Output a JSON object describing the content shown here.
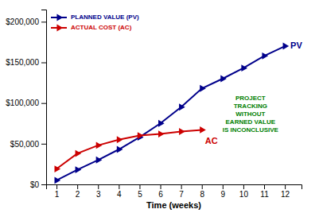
{
  "chart_data": {
    "type": "line",
    "xlabel": "Time (weeks)",
    "x": [
      1,
      2,
      3,
      4,
      5,
      6,
      7,
      8,
      9,
      10,
      11,
      12
    ],
    "series": [
      {
        "name": "PLANNED VALUE (PV)",
        "color": "#00008B",
        "marker": "triangle-right",
        "values": [
          5000,
          18000,
          30000,
          43000,
          58000,
          75000,
          95000,
          118000,
          130000,
          143000,
          158000,
          170000
        ]
      },
      {
        "name": "ACTUAL COST (AC)",
        "color": "#CC0000",
        "marker": "triangle-right",
        "values": [
          19000,
          38000,
          48000,
          55000,
          60000,
          62000,
          65000,
          67000,
          null,
          null,
          null,
          null
        ]
      }
    ],
    "xlim": [
      0.5,
      12.8
    ],
    "ylim": [
      0,
      215000
    ],
    "xticks": [
      1,
      2,
      3,
      4,
      5,
      6,
      7,
      8,
      9,
      10,
      11,
      12
    ],
    "yticks": [
      {
        "value": 0,
        "label": "$0"
      },
      {
        "value": 50000,
        "label": "$50,000"
      },
      {
        "value": 100000,
        "label": "$100,000"
      },
      {
        "value": 150000,
        "label": "$150,000"
      },
      {
        "value": 200000,
        "label": "$200,000"
      }
    ],
    "grid": false,
    "legend": "upper left",
    "annotations": [
      {
        "text": "PV",
        "color": "#00008B"
      },
      {
        "text": "AC",
        "color": "#CC0000"
      },
      {
        "text": "PROJECT\nTRACKING\nWITHOUT\nEARNED VALUE\nIS INCONCLUSIVE",
        "color": "#008000"
      }
    ]
  }
}
